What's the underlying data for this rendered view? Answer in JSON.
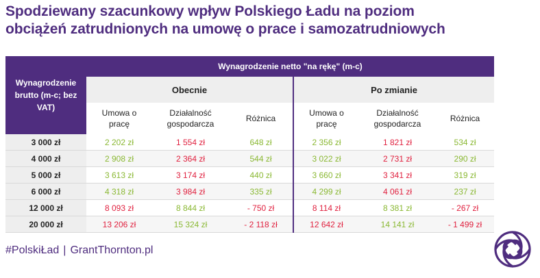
{
  "title": {
    "line1": "Spodziewany szacunkowy wpływ Polskiego Ładu na poziom",
    "line2": "obciążeń zatrudnionych na umowę o prace i samozatrudniowych"
  },
  "table": {
    "row_header": "Wynagrodzenie brutto (m-c; bez VAT)",
    "group_header": "Wynagrodzenie netto \"na rękę\" (m-c)",
    "before_label": "Obecnie",
    "after_label": "Po zmianie",
    "columns": {
      "umowa": "Umowa o pracę",
      "dzialalnosc": "Działalność gospodarcza",
      "roznica": "Różnica"
    },
    "rows": [
      {
        "brutto": "3 000 zł",
        "b_umowa": "2 202 zł",
        "b_dg": "1 554 zł",
        "b_diff": "648 zł",
        "a_umowa": "2 356 zł",
        "a_dg": "1 821 zł",
        "a_diff": "534 zł",
        "colors": {
          "b_umowa": "green",
          "b_dg": "red",
          "b_diff": "green",
          "a_umowa": "green",
          "a_dg": "red",
          "a_diff": "green"
        }
      },
      {
        "brutto": "4 000 zł",
        "b_umowa": "2 908 zł",
        "b_dg": "2 364 zł",
        "b_diff": "544 zł",
        "a_umowa": "3 022 zł",
        "a_dg": "2 731 zł",
        "a_diff": "290 zł",
        "colors": {
          "b_umowa": "green",
          "b_dg": "red",
          "b_diff": "green",
          "a_umowa": "green",
          "a_dg": "red",
          "a_diff": "green"
        }
      },
      {
        "brutto": "5 000 zł",
        "b_umowa": "3 613 zł",
        "b_dg": "3 174 zł",
        "b_diff": "440 zł",
        "a_umowa": "3 660 zł",
        "a_dg": "3 341 zł",
        "a_diff": "319 zł",
        "colors": {
          "b_umowa": "green",
          "b_dg": "red",
          "b_diff": "green",
          "a_umowa": "green",
          "a_dg": "red",
          "a_diff": "green"
        }
      },
      {
        "brutto": "6 000 zł",
        "b_umowa": "4 318 zł",
        "b_dg": "3 984 zł",
        "b_diff": "335 zł",
        "a_umowa": "4 299 zł",
        "a_dg": "4 061 zł",
        "a_diff": "237 zł",
        "colors": {
          "b_umowa": "green",
          "b_dg": "red",
          "b_diff": "green",
          "a_umowa": "green",
          "a_dg": "red",
          "a_diff": "green"
        }
      },
      {
        "brutto": "12 000 zł",
        "b_umowa": "8 093 zł",
        "b_dg": "8 844 zł",
        "b_diff": "- 750 zł",
        "a_umowa": "8 114 zł",
        "a_dg": "8 381 zł",
        "a_diff": "- 267 zł",
        "colors": {
          "b_umowa": "red",
          "b_dg": "green",
          "b_diff": "red",
          "a_umowa": "red",
          "a_dg": "green",
          "a_diff": "red"
        }
      },
      {
        "brutto": "20 000 zł",
        "b_umowa": "13 206 zł",
        "b_dg": "15 324 zł",
        "b_diff": "- 2 118 zł",
        "a_umowa": "12 642 zł",
        "a_dg": "14 141 zł",
        "a_diff": "- 1 499 zł",
        "colors": {
          "b_umowa": "red",
          "b_dg": "green",
          "b_diff": "red",
          "a_umowa": "red",
          "a_dg": "green",
          "a_diff": "red"
        }
      }
    ]
  },
  "footer": {
    "hashtag": "#PolskiŁad",
    "separator": "|",
    "website": "GrantThornton.pl"
  },
  "colors": {
    "brand_purple": "#4f2d7f",
    "positive_green": "#8ab833",
    "negative_red": "#e0213f"
  },
  "logo": {
    "icon": "grant-thornton-spiral-icon"
  }
}
